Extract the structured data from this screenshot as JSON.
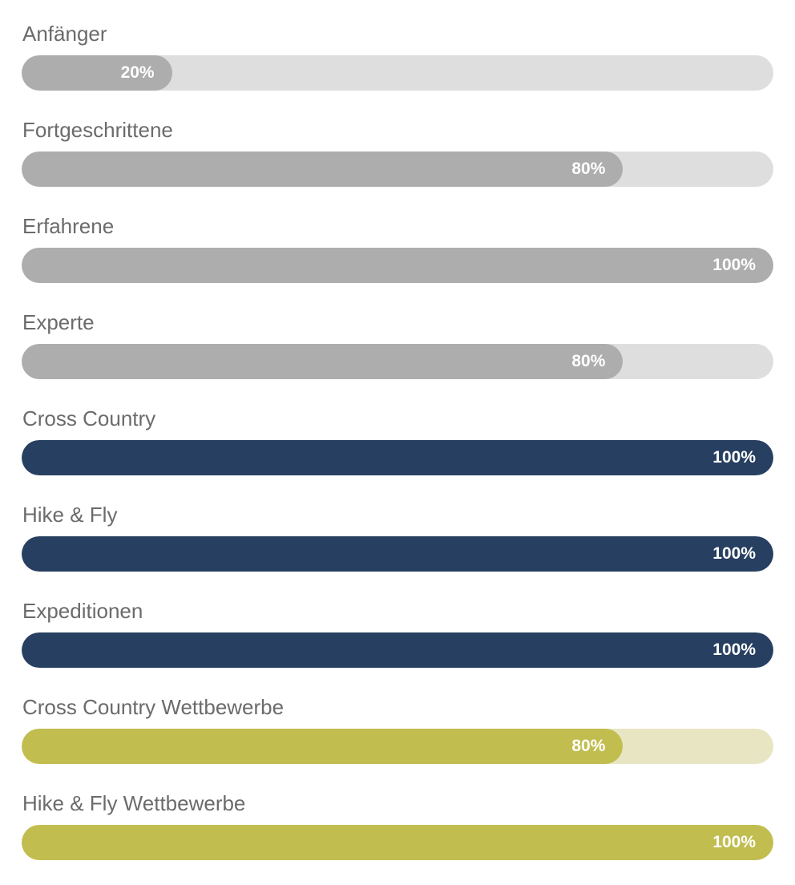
{
  "colors": {
    "gray_fill": "#adadad",
    "gray_track": "#dedede",
    "navy_fill": "#273f60",
    "navy_track": "#c9cfd8",
    "olive_fill": "#c1bd4f",
    "olive_track": "#e8e6c2"
  },
  "skills": [
    {
      "label": "Anfänger",
      "value": 20,
      "value_text": "20%",
      "fill": "#adadad",
      "track": "#dedede"
    },
    {
      "label": "Fortgeschrittene",
      "value": 80,
      "value_text": "80%",
      "fill": "#adadad",
      "track": "#dedede"
    },
    {
      "label": "Erfahrene",
      "value": 100,
      "value_text": "100%",
      "fill": "#adadad",
      "track": "#dedede"
    },
    {
      "label": "Experte",
      "value": 80,
      "value_text": "80%",
      "fill": "#adadad",
      "track": "#dedede"
    },
    {
      "label": "Cross Country",
      "value": 100,
      "value_text": "100%",
      "fill": "#273f60",
      "track": "#c9cfd8"
    },
    {
      "label": "Hike & Fly",
      "value": 100,
      "value_text": "100%",
      "fill": "#273f60",
      "track": "#c9cfd8"
    },
    {
      "label": "Expeditionen",
      "value": 100,
      "value_text": "100%",
      "fill": "#273f60",
      "track": "#c9cfd8"
    },
    {
      "label": "Cross Country Wettbewerbe",
      "value": 80,
      "value_text": "80%",
      "fill": "#c1bd4f",
      "track": "#e8e6c2"
    },
    {
      "label": "Hike & Fly Wettbewerbe",
      "value": 100,
      "value_text": "100%",
      "fill": "#c1bd4f",
      "track": "#e8e6c2"
    }
  ]
}
